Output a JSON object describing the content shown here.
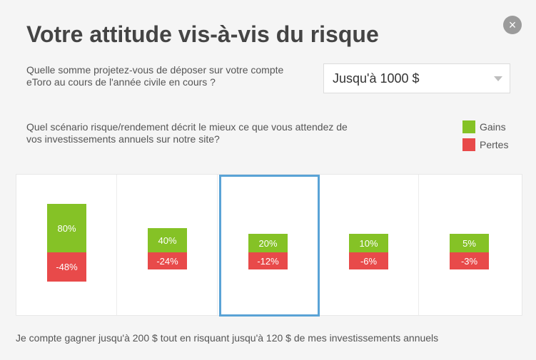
{
  "title": "Votre attitude vis-à-vis du risque",
  "close_label": "×",
  "deposit": {
    "question": "Quelle somme projetez-vous de déposer sur votre compte eToro au cours de l'année civile en cours ?",
    "selected_value": "Jusqu'à 1000 $"
  },
  "scenario_question": "Quel scénario risque/rendement décrit le mieux ce que vous attendez de vos investissements annuels sur notre site?",
  "legend": {
    "gains_label": "Gains",
    "losses_label": "Pertes",
    "gains_color": "#85c226",
    "losses_color": "#e84a4a"
  },
  "scenarios": [
    {
      "gain_label": "80%",
      "loss_label": "-48%",
      "gain": 80,
      "loss": 48
    },
    {
      "gain_label": "40%",
      "loss_label": "-24%",
      "gain": 40,
      "loss": 24
    },
    {
      "gain_label": "20%",
      "loss_label": "-12%",
      "gain": 20,
      "loss": 12
    },
    {
      "gain_label": "10%",
      "loss_label": "-6%",
      "gain": 10,
      "loss": 6
    },
    {
      "gain_label": "5%",
      "loss_label": "-3%",
      "gain": 5,
      "loss": 3
    }
  ],
  "selected_scenario": 2,
  "selection_color": "#5aa3d6",
  "summary": "Je compte gagner jusqu'à 200 $ tout en risquant jusqu'à 120 $ de mes investissements annuels"
}
